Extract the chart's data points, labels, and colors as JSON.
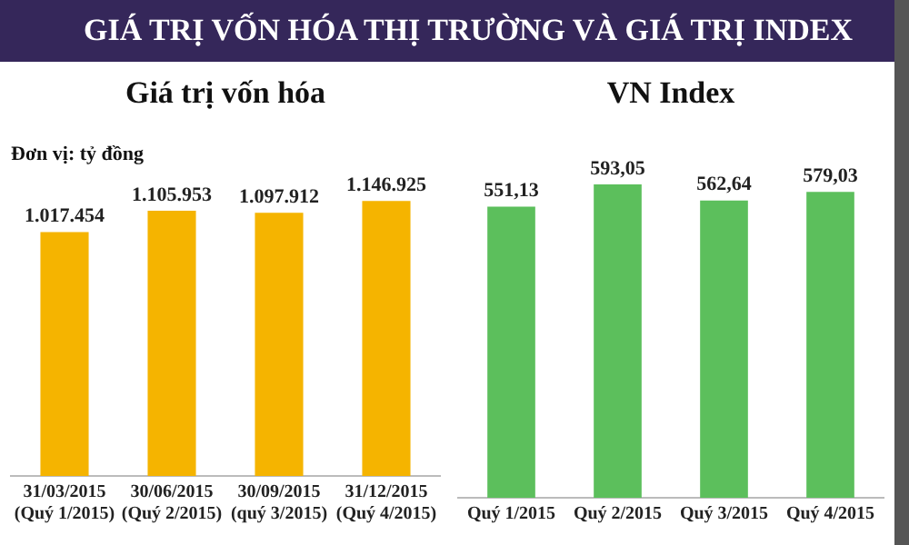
{
  "chart_data": [
    {
      "type": "bar",
      "title": "Giá trị vốn hóa",
      "subtitle": "Đơn vị: tỷ đồng",
      "annotations": [
        "GIÁ TRỊ VỐN HÓA THỊ TRƯỜNG VÀ GIÁ TRỊ INDEX"
      ],
      "categories": [
        "31/03/2015 (Quý 1/2015)",
        "30/06/2015 (Quý 2/2015)",
        "30/09/2015 (quý 3/2015)",
        "31/12/2015 (Quý 4/2015)"
      ],
      "values": [
        1017454,
        1105953,
        1097912,
        1146925
      ],
      "value_labels": [
        "1.017.454",
        "1.105.953",
        "1.097.912",
        "1.146.925"
      ],
      "color": "#f5b400",
      "grid": false,
      "legend": false
    },
    {
      "type": "bar",
      "title": "VN Index",
      "categories": [
        "Quý 1/2015",
        "Quý 2/2015",
        "Quý 3/2015",
        "Quý 4/2015"
      ],
      "values": [
        551.13,
        593.05,
        562.64,
        579.03
      ],
      "value_labels": [
        "551,13",
        "593,05",
        "562,64",
        "579,03"
      ],
      "color": "#5cbf5c",
      "grid": false,
      "legend": false
    }
  ]
}
